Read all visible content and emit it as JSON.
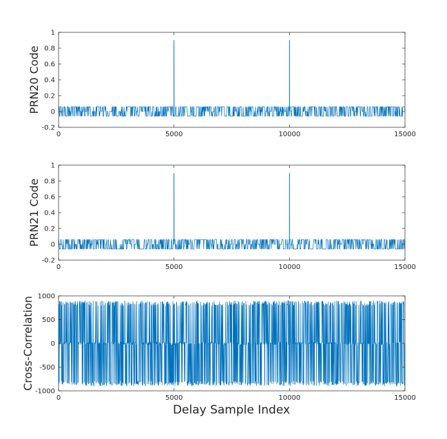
{
  "colors": {
    "line": "#0072BD",
    "axes": "#262626",
    "background": "#ffffff"
  },
  "chart_data": [
    {
      "type": "line",
      "title": "",
      "xlabel": "",
      "ylabel": "PRN20 Code",
      "xlim": [
        0,
        15000
      ],
      "ylim": [
        -0.2,
        1
      ],
      "xticks": [
        0,
        5000,
        10000,
        15000
      ],
      "yticks": [
        -0.2,
        0,
        0.2,
        0.4,
        0.6,
        0.8,
        1
      ],
      "xtick_labels": [
        "0",
        "5000",
        "10000",
        "15000"
      ],
      "ytick_labels": [
        "-0.2",
        "0",
        "0.2",
        "0.4",
        "0.6",
        "0.8",
        "1"
      ],
      "grid": false,
      "legend": "none",
      "baseline_levels": [
        -0.06,
        0,
        0.06
      ],
      "peaks": [
        {
          "x": 5000,
          "y": 0.9
        },
        {
          "x": 10000,
          "y": 0.9
        }
      ]
    },
    {
      "type": "line",
      "title": "",
      "xlabel": "",
      "ylabel": "PRN21 Code",
      "xlim": [
        0,
        15000
      ],
      "ylim": [
        -0.2,
        1
      ],
      "xticks": [
        0,
        5000,
        10000,
        15000
      ],
      "yticks": [
        -0.2,
        0,
        0.2,
        0.4,
        0.6,
        0.8,
        1
      ],
      "xtick_labels": [
        "0",
        "5000",
        "10000",
        "15000"
      ],
      "ytick_labels": [
        "-0.2",
        "0",
        "0.2",
        "0.4",
        "0.6",
        "0.8",
        "1"
      ],
      "grid": false,
      "legend": "none",
      "baseline_levels": [
        -0.06,
        0,
        0.06
      ],
      "peaks": [
        {
          "x": 5000,
          "y": 0.9
        },
        {
          "x": 10000,
          "y": 0.9
        }
      ]
    },
    {
      "type": "line",
      "title": "",
      "xlabel": "Delay Sample Index",
      "ylabel": "Cross-Correlation",
      "xlim": [
        0,
        15000
      ],
      "ylim": [
        -1000,
        1000
      ],
      "xticks": [
        0,
        5000,
        10000,
        15000
      ],
      "yticks": [
        -1000,
        -500,
        0,
        500,
        1000
      ],
      "xtick_labels": [
        "0",
        "5000",
        "10000",
        "15000"
      ],
      "ytick_labels": [
        "-1000",
        "-500",
        "0",
        "500",
        "1000"
      ],
      "grid": false,
      "legend": "none",
      "baseline_levels": [
        -900,
        0,
        900
      ],
      "peaks": []
    }
  ]
}
